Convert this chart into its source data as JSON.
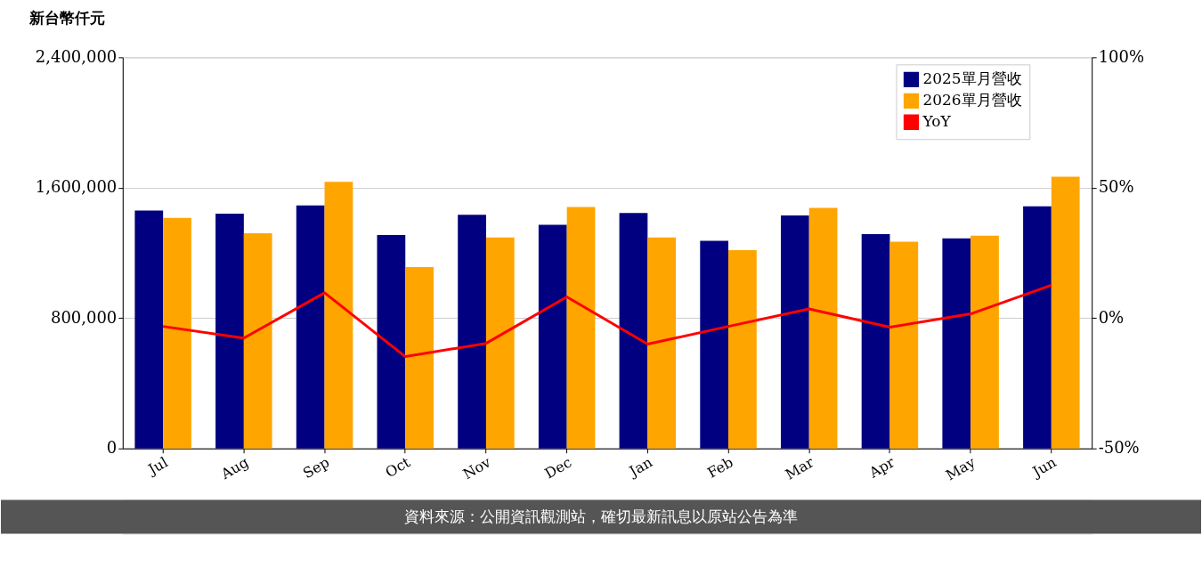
{
  "chart_data": {
    "type": "bar",
    "ylabel": "新台幣仟元",
    "categories": [
      "Jul",
      "Aug",
      "Sep",
      "Oct",
      "Nov",
      "Dec",
      "Jan",
      "Feb",
      "Mar",
      "Apr",
      "May",
      "Jun"
    ],
    "series": [
      {
        "name": "2025單月營收",
        "color": "#000080",
        "values": [
          1460000,
          1440000,
          1491000,
          1310000,
          1434000,
          1372000,
          1445000,
          1274000,
          1429000,
          1315000,
          1289000,
          1486000
        ]
      },
      {
        "name": "2026單月營收",
        "color": "#ffa500",
        "values": [
          1414000,
          1320000,
          1636000,
          1113000,
          1295000,
          1481000,
          1295000,
          1217000,
          1476000,
          1269000,
          1305000,
          1667000
        ]
      },
      {
        "name": "YoY",
        "type": "line",
        "axis": "y2",
        "color": "#ff0000",
        "values": [
          -3.2,
          -7.7,
          9.7,
          -14.8,
          -9.7,
          8.1,
          -10.0,
          -3.2,
          3.5,
          -3.5,
          1.6,
          12.6
        ]
      }
    ],
    "ylim": [
      0,
      2400000
    ],
    "yticks": [
      {
        "value": 0,
        "label": "0"
      },
      {
        "value": 800000,
        "label": "800,000"
      },
      {
        "value": 1600000,
        "label": "1,600,000"
      },
      {
        "value": 2400000,
        "label": "2,400,000"
      }
    ],
    "y2lim": [
      -50,
      100
    ],
    "y2ticks": [
      {
        "value": -50,
        "label": "-50%"
      },
      {
        "value": 0,
        "label": "0%"
      },
      {
        "value": 50,
        "label": "50%"
      },
      {
        "value": 100,
        "label": "100%"
      }
    ],
    "grid": "y",
    "legend": "top right",
    "marker": "none",
    "line_style": "solid",
    "annotations": [
      "資料來源：公開資訊觀測站，確切最新訊息以原站公告為準"
    ]
  }
}
